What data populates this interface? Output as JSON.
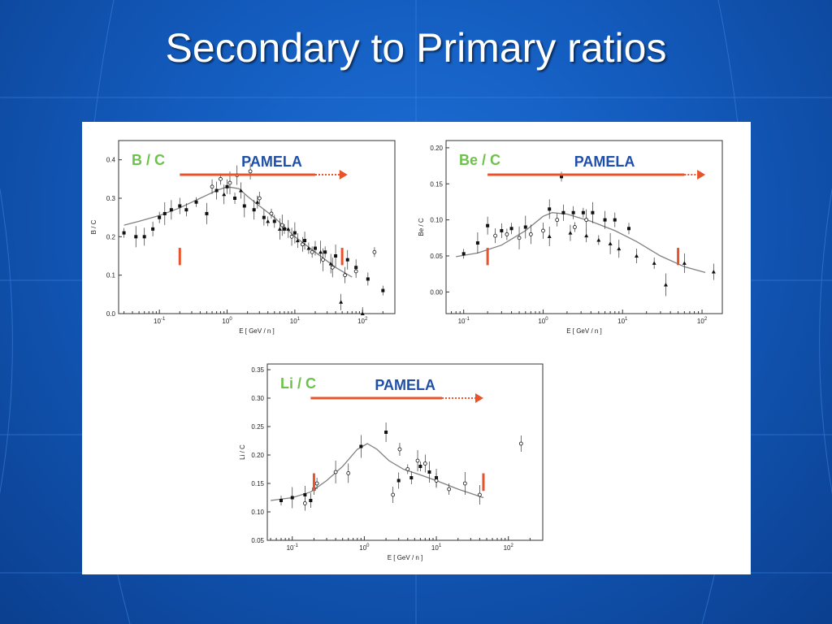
{
  "slide": {
    "title": "Secondary to Primary ratios"
  },
  "colors": {
    "label_green": "#6cc24a",
    "pamela_blue": "#1f4fa8",
    "arrow_red": "#e8532a",
    "model_line": "#808080"
  },
  "chart_data": [
    {
      "type": "scatter",
      "label": "B / C",
      "annotation": "PAMELA",
      "ylabel": "B / C",
      "xlabel": "E [ GeV / n ]",
      "xscale": "log",
      "xlim": [
        0.025,
        300
      ],
      "ylim": [
        0.0,
        0.45
      ],
      "yticks": [
        "0.0",
        "0.1",
        "0.2",
        "0.3",
        "0.4"
      ],
      "xticks": [
        "10-1",
        "100",
        "101",
        "102"
      ],
      "arrow": {
        "solid_from": 0.2,
        "solid_to": 20,
        "dotted_to": 60
      },
      "pamela_marks": [
        0.2,
        50
      ],
      "model": {
        "x": [
          0.03,
          0.05,
          0.1,
          0.2,
          0.4,
          0.7,
          1.0,
          1.5,
          2,
          3,
          5,
          10,
          20,
          40,
          70
        ],
        "y": [
          0.23,
          0.24,
          0.255,
          0.275,
          0.3,
          0.32,
          0.33,
          0.325,
          0.305,
          0.28,
          0.25,
          0.2,
          0.16,
          0.12,
          0.095
        ]
      },
      "series": [
        {
          "marker": "filled",
          "x": [
            0.03,
            0.045,
            0.06,
            0.08,
            0.1,
            0.12,
            0.15,
            0.2,
            0.25,
            0.35,
            0.5,
            0.7,
            1.0,
            1.3,
            1.8,
            2.5,
            3.5,
            5,
            7,
            10,
            14,
            20,
            28,
            40,
            60,
            80,
            120,
            200
          ],
          "y": [
            0.21,
            0.2,
            0.2,
            0.22,
            0.25,
            0.26,
            0.27,
            0.28,
            0.27,
            0.29,
            0.26,
            0.32,
            0.33,
            0.3,
            0.28,
            0.27,
            0.25,
            0.24,
            0.22,
            0.21,
            0.19,
            0.17,
            0.16,
            0.15,
            0.14,
            0.12,
            0.09,
            0.06
          ]
        },
        {
          "marker": "open",
          "x": [
            0.6,
            0.8,
            1.1,
            1.4,
            2.2,
            3,
            4.5,
            6.5,
            9,
            13,
            18,
            26,
            36,
            55,
            80,
            150
          ],
          "y": [
            0.33,
            0.35,
            0.34,
            0.36,
            0.37,
            0.3,
            0.26,
            0.23,
            0.2,
            0.18,
            0.16,
            0.14,
            0.12,
            0.1,
            0.11,
            0.16
          ]
        },
        {
          "marker": "triangle",
          "x": [
            0.9,
            1.6,
            2.8,
            4,
            6,
            8,
            11,
            16,
            24,
            34,
            48,
            100
          ],
          "y": [
            0.31,
            0.32,
            0.29,
            0.24,
            0.22,
            0.22,
            0.19,
            0.17,
            0.16,
            0.13,
            0.03,
            0.0
          ]
        }
      ]
    },
    {
      "type": "scatter",
      "label": "Be / C",
      "annotation": "PAMELA",
      "ylabel": "Be / C",
      "xlabel": "E [ GeV / n ]",
      "xscale": "log",
      "xlim": [
        0.06,
        180
      ],
      "ylim": [
        -0.03,
        0.21
      ],
      "yticks": [
        "0.00",
        "0.05",
        "0.10",
        "0.15",
        "0.20"
      ],
      "xticks": [
        "10-1",
        "100",
        "101",
        "102"
      ],
      "arrow": {
        "solid_from": 0.2,
        "solid_to": 60,
        "dotted_to": 110
      },
      "pamela_marks": [
        0.2,
        50
      ],
      "model": {
        "x": [
          0.08,
          0.15,
          0.3,
          0.6,
          1.0,
          1.3,
          2,
          4,
          8,
          15,
          30,
          60,
          110
        ],
        "y": [
          0.049,
          0.054,
          0.065,
          0.085,
          0.105,
          0.11,
          0.108,
          0.098,
          0.085,
          0.07,
          0.05,
          0.035,
          0.027
        ]
      },
      "series": [
        {
          "marker": "filled",
          "x": [
            0.1,
            0.15,
            0.2,
            0.3,
            0.4,
            0.6,
            1.2,
            1.8,
            2.4,
            3.2,
            4.2,
            6,
            8,
            12
          ],
          "y": [
            0.053,
            0.068,
            0.092,
            0.085,
            0.088,
            0.09,
            0.115,
            0.11,
            0.11,
            0.11,
            0.11,
            0.1,
            0.1,
            0.088
          ]
        },
        {
          "marker": "open",
          "x": [
            0.25,
            0.35,
            0.5,
            0.7,
            1.0,
            1.5,
            2.5,
            3.5
          ],
          "y": [
            0.078,
            0.08,
            0.075,
            0.08,
            0.085,
            0.1,
            0.09,
            0.1
          ]
        },
        {
          "marker": "triangle",
          "x": [
            1.2,
            2.2,
            3.5,
            5,
            7,
            9,
            15,
            25,
            35,
            60,
            140
          ],
          "y": [
            0.077,
            0.082,
            0.078,
            0.072,
            0.067,
            0.06,
            0.05,
            0.04,
            0.01,
            0.04,
            0.028
          ]
        },
        {
          "marker": "filled",
          "x": [
            1.7
          ],
          "y": [
            0.16
          ]
        }
      ]
    },
    {
      "type": "scatter",
      "label": "Li / C",
      "annotation": "PAMELA",
      "ylabel": "Li / C",
      "xlabel": "E [ GeV / n ]",
      "xscale": "log",
      "xlim": [
        0.045,
        300
      ],
      "ylim": [
        0.05,
        0.36
      ],
      "yticks": [
        "0.05",
        "0.10",
        "0.15",
        "0.20",
        "0.25",
        "0.30",
        "0.35"
      ],
      "xticks": [
        "10-1",
        "100",
        "101",
        "102"
      ],
      "arrow": {
        "solid_from": 0.18,
        "solid_to": 12,
        "dotted_to": 45
      },
      "pamela_marks": [
        0.2,
        45
      ],
      "model": {
        "x": [
          0.05,
          0.1,
          0.18,
          0.3,
          0.5,
          0.8,
          1.1,
          1.5,
          2.2,
          3.5,
          6,
          10,
          20,
          45
        ],
        "y": [
          0.12,
          0.125,
          0.135,
          0.155,
          0.18,
          0.21,
          0.22,
          0.21,
          0.19,
          0.175,
          0.165,
          0.155,
          0.14,
          0.125
        ]
      },
      "series": [
        {
          "marker": "filled",
          "x": [
            0.07,
            0.1,
            0.15,
            0.18,
            0.2,
            0.9,
            2,
            3,
            4.5,
            6,
            8,
            10
          ],
          "y": [
            0.12,
            0.125,
            0.13,
            0.12,
            0.14,
            0.215,
            0.24,
            0.155,
            0.16,
            0.18,
            0.17,
            0.16
          ]
        },
        {
          "marker": "open",
          "x": [
            0.15,
            0.22,
            0.4,
            0.6,
            2.5,
            3.1,
            4,
            5.5,
            7,
            10,
            15,
            25,
            40,
            150
          ],
          "y": [
            0.115,
            0.15,
            0.17,
            0.168,
            0.13,
            0.21,
            0.175,
            0.19,
            0.185,
            0.155,
            0.14,
            0.15,
            0.13,
            0.22
          ]
        }
      ]
    }
  ]
}
